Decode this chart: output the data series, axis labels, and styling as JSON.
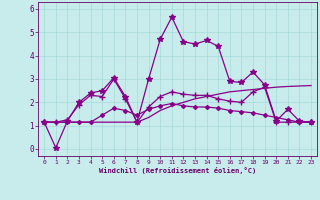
{
  "title": "",
  "xlabel": "Windchill (Refroidissement éolien,°C)",
  "background_color": "#c8ecec",
  "grid_color": "#a8d8d8",
  "line_color": "#880088",
  "xlim": [
    -0.5,
    23.5
  ],
  "ylim": [
    -0.3,
    6.3
  ],
  "xticks": [
    0,
    1,
    2,
    3,
    4,
    5,
    6,
    7,
    8,
    9,
    10,
    11,
    12,
    13,
    14,
    15,
    16,
    17,
    18,
    19,
    20,
    21,
    22,
    23
  ],
  "yticks": [
    0,
    1,
    2,
    3,
    4,
    5,
    6
  ],
  "series": [
    {
      "x": [
        0,
        1,
        2,
        3,
        4,
        5,
        6,
        7,
        8,
        9,
        10,
        11,
        12,
        13,
        14,
        15,
        16,
        17,
        18,
        19,
        20,
        21,
        22,
        23
      ],
      "y": [
        1.15,
        0.05,
        1.2,
        2.0,
        2.4,
        2.5,
        3.05,
        2.25,
        1.15,
        3.0,
        4.7,
        5.65,
        4.6,
        4.5,
        4.65,
        4.4,
        2.9,
        2.85,
        3.3,
        2.75,
        1.2,
        1.7,
        1.2,
        1.15
      ],
      "marker": "*",
      "markersize": 4,
      "linewidth": 0.9
    },
    {
      "x": [
        0,
        1,
        2,
        3,
        4,
        5,
        6,
        7,
        8,
        9,
        10,
        11,
        12,
        13,
        14,
        15,
        16,
        17,
        18,
        19,
        20,
        21,
        22,
        23
      ],
      "y": [
        1.15,
        1.15,
        1.25,
        1.9,
        2.3,
        2.25,
        3.0,
        2.15,
        1.15,
        1.8,
        2.25,
        2.45,
        2.35,
        2.3,
        2.3,
        2.15,
        2.05,
        2.0,
        2.45,
        2.65,
        1.15,
        1.15,
        1.15,
        1.15
      ],
      "marker": "+",
      "markersize": 5,
      "linewidth": 0.9
    },
    {
      "x": [
        0,
        1,
        2,
        3,
        4,
        5,
        6,
        7,
        8,
        9,
        10,
        11,
        12,
        13,
        14,
        15,
        16,
        17,
        18,
        19,
        20,
        21,
        22,
        23
      ],
      "y": [
        1.15,
        1.15,
        1.15,
        1.15,
        1.15,
        1.45,
        1.75,
        1.65,
        1.45,
        1.7,
        1.85,
        1.95,
        1.85,
        1.8,
        1.8,
        1.75,
        1.65,
        1.6,
        1.55,
        1.45,
        1.35,
        1.25,
        1.15,
        1.15
      ],
      "marker": "D",
      "markersize": 2,
      "linewidth": 0.9
    },
    {
      "x": [
        0,
        1,
        2,
        3,
        4,
        5,
        6,
        7,
        8,
        9,
        10,
        11,
        12,
        13,
        14,
        15,
        16,
        17,
        18,
        19,
        20,
        21,
        22,
        23
      ],
      "y": [
        1.15,
        1.15,
        1.15,
        1.15,
        1.15,
        1.15,
        1.15,
        1.15,
        1.15,
        1.35,
        1.65,
        1.85,
        2.0,
        2.15,
        2.25,
        2.35,
        2.45,
        2.5,
        2.55,
        2.6,
        2.65,
        2.68,
        2.7,
        2.72
      ],
      "marker": null,
      "markersize": 0,
      "linewidth": 0.9
    }
  ]
}
